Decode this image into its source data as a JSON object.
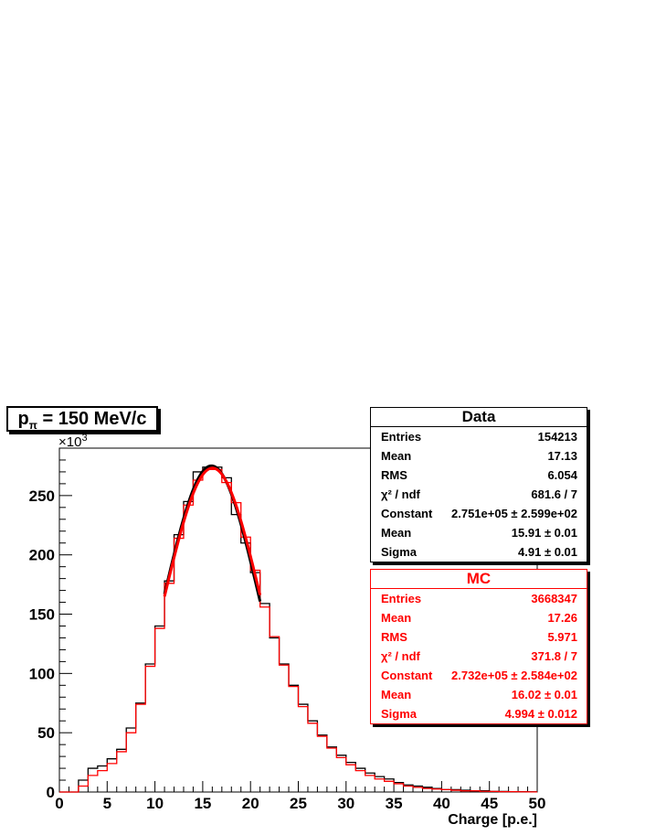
{
  "title": {
    "main": "p",
    "sub": "π",
    "rest": " = 150 MeV/c"
  },
  "chart_data": {
    "type": "histogram",
    "xlabel": "Charge [p.e.]",
    "ylabel": "",
    "y_multiplier": "×10",
    "y_multiplier_exp": "3",
    "xlim": [
      0,
      50
    ],
    "ylim": [
      0,
      290
    ],
    "x_ticks": [
      "0",
      "5",
      "10",
      "15",
      "20",
      "25",
      "30",
      "35",
      "40",
      "45",
      "50"
    ],
    "y_ticks": [
      "0",
      "50",
      "100",
      "150",
      "200",
      "250"
    ],
    "bin_width": 1,
    "series": [
      {
        "name": "Data",
        "color": "#000000",
        "x_start": 0,
        "values": [
          0,
          0,
          10,
          20,
          22,
          28,
          36,
          54,
          75,
          108,
          140,
          178,
          217,
          245,
          270,
          274,
          274,
          265,
          234,
          210,
          185,
          159,
          130,
          108,
          90,
          74,
          60,
          48,
          38,
          31,
          25,
          20,
          16,
          13,
          11,
          8,
          6,
          5,
          4,
          3,
          2,
          2,
          1.5,
          1,
          1,
          0.5,
          0.5,
          0.3,
          0.3,
          0.2
        ]
      },
      {
        "name": "MC",
        "color": "#ff0000",
        "x_start": 0,
        "values": [
          0,
          0,
          5,
          14,
          18,
          24,
          34,
          50,
          74,
          106,
          138,
          176,
          214,
          242,
          263,
          272,
          272,
          261,
          244,
          215,
          187,
          156,
          131,
          107,
          89,
          72,
          58,
          47,
          37,
          29,
          23,
          18,
          14,
          11,
          9,
          7,
          5,
          4,
          3,
          2.5,
          2,
          1.5,
          1,
          1,
          0.6,
          0.5,
          0.3,
          0.3,
          0.2,
          0.1
        ]
      }
    ],
    "fits": [
      {
        "name": "Data",
        "color": "#000000",
        "constant": 275.1,
        "mean": 15.91,
        "sigma": 4.91,
        "range": [
          11,
          21
        ]
      },
      {
        "name": "MC",
        "color": "#ff0000",
        "constant": 273.2,
        "mean": 16.02,
        "sigma": 4.994,
        "range": [
          11,
          21
        ]
      }
    ]
  },
  "stats_data": {
    "header": "Data",
    "rows": [
      {
        "label": "Entries",
        "value": "154213"
      },
      {
        "label": "Mean",
        "value": "17.13"
      },
      {
        "label": "RMS",
        "value": "6.054"
      },
      {
        "label": "χ² / ndf",
        "value": "681.6 / 7"
      },
      {
        "label": "Constant",
        "value": "2.751e+05 ± 2.599e+02"
      },
      {
        "label": "Mean",
        "value": "15.91 ± 0.01"
      },
      {
        "label": "Sigma",
        "value": "4.91 ± 0.01"
      }
    ]
  },
  "stats_mc": {
    "header": "MC",
    "rows": [
      {
        "label": "Entries",
        "value": "3668347"
      },
      {
        "label": "Mean",
        "value": "17.26"
      },
      {
        "label": "RMS",
        "value": "5.971"
      },
      {
        "label": "χ² / ndf",
        "value": "371.8 / 7"
      },
      {
        "label": "Constant",
        "value": "2.732e+05 ± 2.584e+02"
      },
      {
        "label": "Mean",
        "value": "16.02 ± 0.01"
      },
      {
        "label": "Sigma",
        "value": "4.994 ± 0.012"
      }
    ]
  }
}
